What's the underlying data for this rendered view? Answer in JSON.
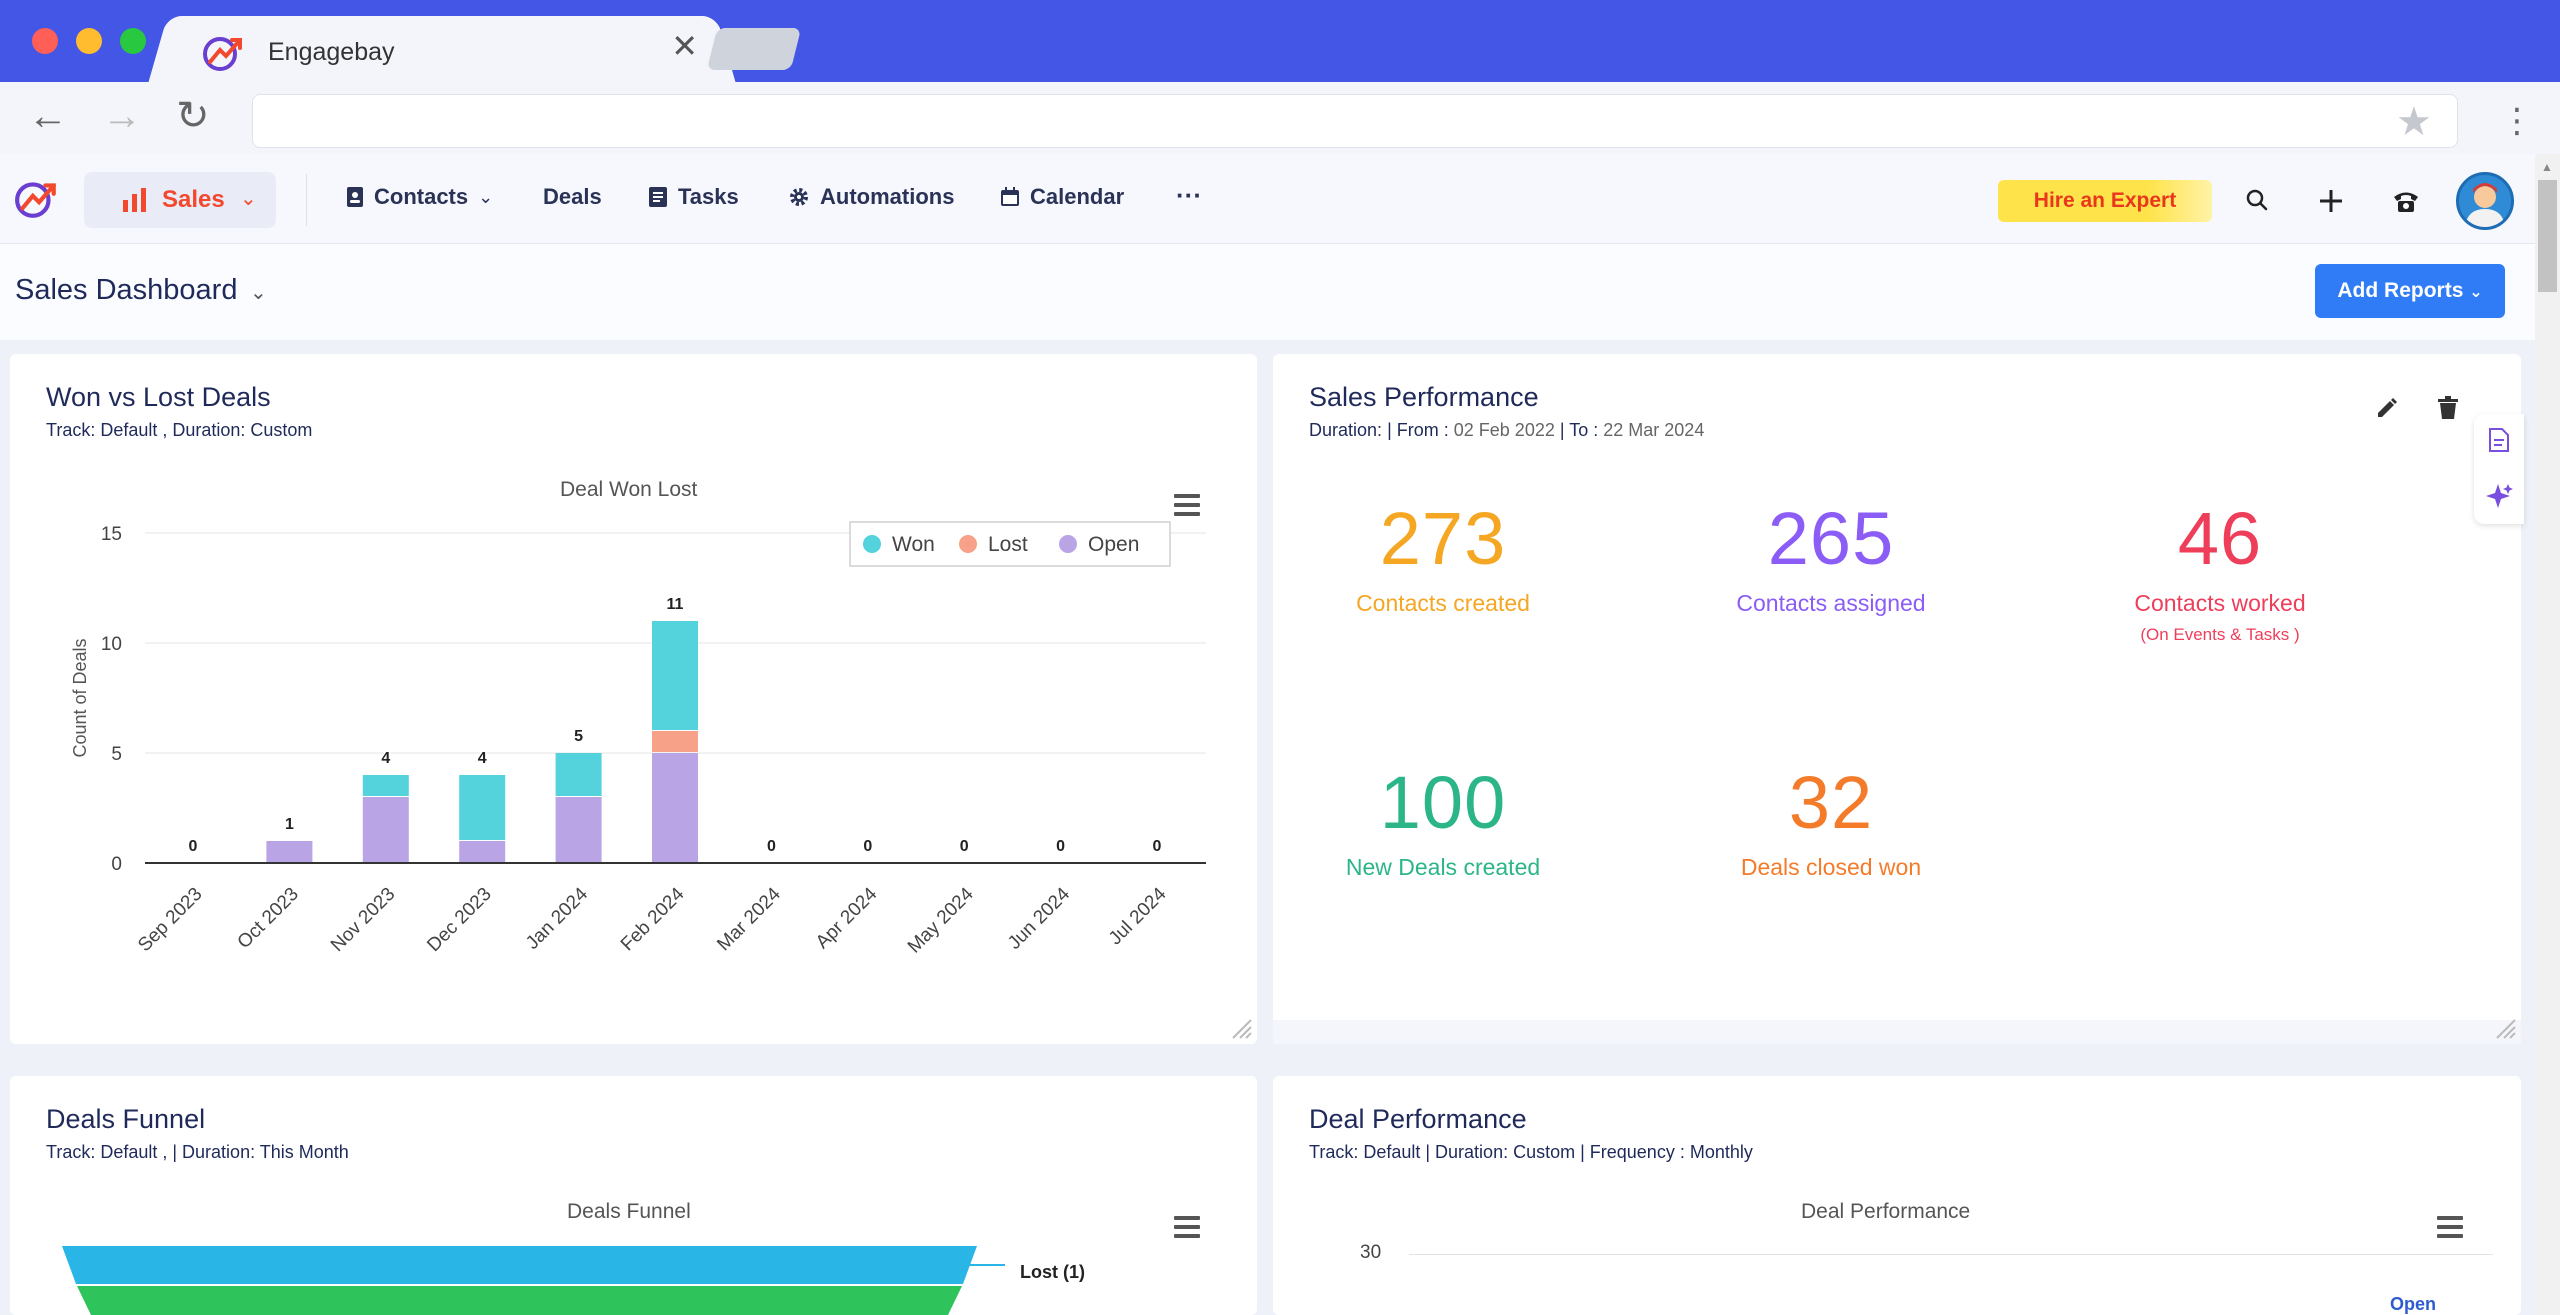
{
  "browser": {
    "tab_title": "Engagebay",
    "url": ""
  },
  "nav": {
    "sales_label": "Sales",
    "contacts_label": "Contacts",
    "deals_label": "Deals",
    "tasks_label": "Tasks",
    "automations_label": "Automations",
    "calendar_label": "Calendar",
    "more_label": "···",
    "hire_label": "Hire an Expert"
  },
  "dashboard": {
    "title": "Sales Dashboard",
    "add_reports_label": "Add Reports"
  },
  "won_lost": {
    "title": "Won vs Lost Deals",
    "subtitle": "Track: Default ,  Duration: Custom",
    "chart_title": "Deal Won Lost"
  },
  "sales_perf": {
    "title": "Sales Performance",
    "duration_label": "Duration:",
    "from_label": "| From :",
    "from_value": "02 Feb 2022",
    "to_label": "| To :",
    "to_value": "22 Mar 2024",
    "stats": [
      {
        "value": "273",
        "label": "Contacts created",
        "color": "#f5a623"
      },
      {
        "value": "265",
        "label": "Contacts assigned",
        "color": "#8b5cf6"
      },
      {
        "value": "46",
        "label": "Contacts worked",
        "note": "(On Events & Tasks )",
        "color": "#ee3e5a"
      },
      {
        "value": "100",
        "label": "New Deals created",
        "color": "#2db58a"
      },
      {
        "value": "32",
        "label": "Deals closed won",
        "color": "#f47b2a"
      }
    ]
  },
  "deals_funnel": {
    "title": "Deals Funnel",
    "subtitle": "Track: Default ,  | Duration: This Month",
    "chart_title": "Deals Funnel",
    "first_label": "Lost (1)"
  },
  "deal_perf": {
    "title": "Deal Performance",
    "subtitle": "Track: Default   | Duration: Custom | Frequency : Monthly",
    "chart_title": "Deal Performance",
    "y_top": "30",
    "legend_first": "Open"
  },
  "chart_data": {
    "type": "bar",
    "stacked": true,
    "title": "Deal Won Lost",
    "xlabel": "",
    "ylabel": "Count of Deals",
    "ylim": [
      0,
      15
    ],
    "yticks": [
      0,
      5,
      10,
      15
    ],
    "categories": [
      "Sep 2023",
      "Oct 2023",
      "Nov 2023",
      "Dec 2023",
      "Jan 2024",
      "Feb 2024",
      "Mar 2024",
      "Apr 2024",
      "May 2024",
      "Jun 2024",
      "Jul 2024"
    ],
    "series": [
      {
        "name": "Open",
        "color": "#b9a4e6",
        "values": [
          0,
          1,
          3,
          1,
          3,
          5,
          0,
          0,
          0,
          0,
          0
        ]
      },
      {
        "name": "Lost",
        "color": "#f7a189",
        "values": [
          0,
          0,
          0,
          0,
          0,
          1,
          0,
          0,
          0,
          0,
          0
        ]
      },
      {
        "name": "Won",
        "color": "#55d3dc",
        "values": [
          0,
          0,
          1,
          3,
          2,
          5,
          0,
          0,
          0,
          0,
          0
        ]
      }
    ],
    "totals": [
      0,
      1,
      4,
      4,
      5,
      11,
      0,
      0,
      0,
      0,
      0
    ],
    "legend": [
      "Won",
      "Lost",
      "Open"
    ],
    "legend_position": "top-right",
    "grid": true
  }
}
